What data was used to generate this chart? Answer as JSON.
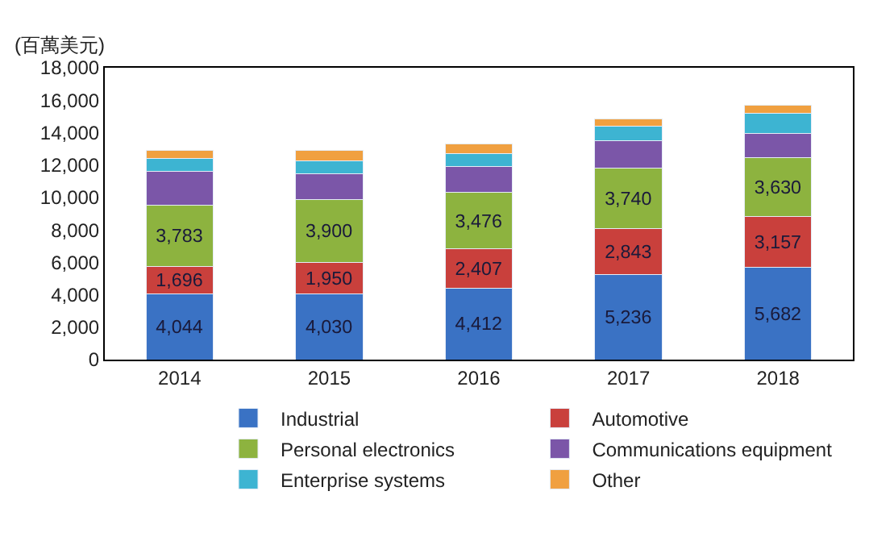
{
  "chart_data": {
    "type": "bar",
    "stacked": true,
    "ylabel": "(百萬美元)",
    "categories": [
      "2014",
      "2015",
      "2016",
      "2017",
      "2018"
    ],
    "ylim": [
      0,
      18000
    ],
    "yticks": [
      {
        "value": 0,
        "label": "0"
      },
      {
        "value": 2000,
        "label": "2,000"
      },
      {
        "value": 4000,
        "label": "4,000"
      },
      {
        "value": 6000,
        "label": "6,000"
      },
      {
        "value": 8000,
        "label": "8,000"
      },
      {
        "value": 10000,
        "label": "10,000"
      },
      {
        "value": 12000,
        "label": "12,000"
      },
      {
        "value": 14000,
        "label": "14,000"
      },
      {
        "value": 16000,
        "label": "16,000"
      },
      {
        "value": 18000,
        "label": "18,000"
      }
    ],
    "legend": "bottom",
    "series": [
      {
        "name": "Industrial",
        "color": "#3a72c4",
        "values": [
          4044,
          4030,
          4412,
          5236,
          5682
        ],
        "value_labels": [
          "4,044",
          "4,030",
          "4,412",
          "5,236",
          "5,682"
        ]
      },
      {
        "name": "Automotive",
        "color": "#c9403c",
        "values": [
          1696,
          1950,
          2407,
          2843,
          3157
        ],
        "value_labels": [
          "1,696",
          "1,950",
          "2,407",
          "2,843",
          "3,157"
        ]
      },
      {
        "name": "Personal electronics",
        "color": "#8db33f",
        "values": [
          3783,
          3900,
          3476,
          3740,
          3630
        ],
        "value_labels": [
          "3,783",
          "3,900",
          "3,476",
          "3,740",
          "3,630"
        ]
      },
      {
        "name": "Communications equipment",
        "color": "#7b56a8",
        "values": [
          2100,
          1600,
          1600,
          1700,
          1500
        ]
      },
      {
        "name": "Enterprise systems",
        "color": "#3db4d2",
        "values": [
          800,
          800,
          800,
          900,
          1200
        ]
      },
      {
        "name": "Other",
        "color": "#f0a040",
        "values": [
          500,
          600,
          600,
          400,
          500
        ]
      }
    ]
  }
}
